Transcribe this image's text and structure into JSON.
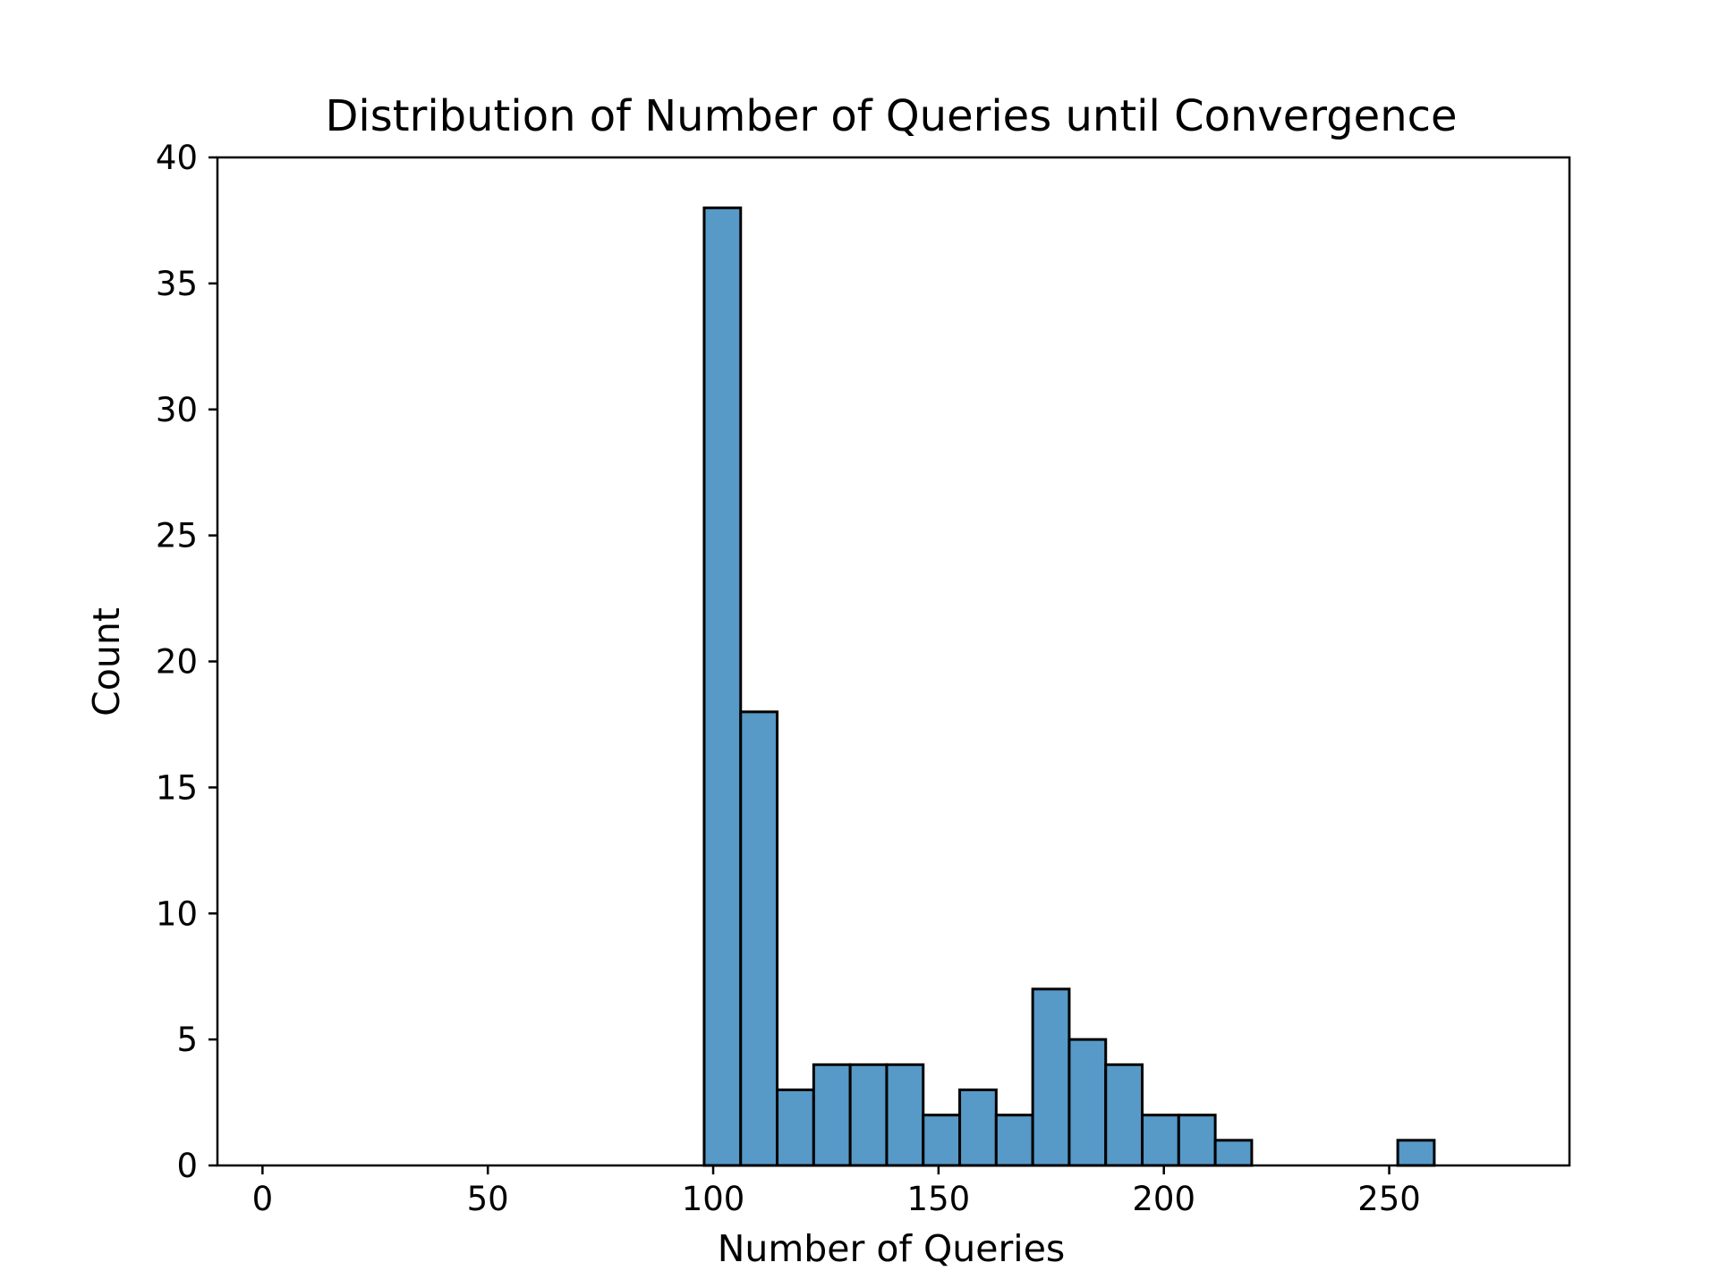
{
  "chart_data": {
    "type": "bar",
    "subtype": "histogram",
    "title": "Distribution of Number of Queries until Convergence",
    "xlabel": "Number of Queries",
    "ylabel": "Count",
    "xlim": [
      -10,
      290
    ],
    "ylim": [
      0,
      40
    ],
    "xticks": [
      0,
      50,
      100,
      150,
      200,
      250
    ],
    "yticks": [
      0,
      5,
      10,
      15,
      20,
      25,
      30,
      35,
      40
    ],
    "grid": false,
    "legend": "none",
    "bar_color": "#5799c7",
    "edge_color": "#000000",
    "bins": [
      {
        "x0": 98.0,
        "x1": 106.1,
        "count": 38
      },
      {
        "x0": 106.1,
        "x1": 114.2,
        "count": 18
      },
      {
        "x0": 114.2,
        "x1": 122.3,
        "count": 3
      },
      {
        "x0": 122.3,
        "x1": 130.4,
        "count": 4
      },
      {
        "x0": 130.4,
        "x1": 138.5,
        "count": 4
      },
      {
        "x0": 138.5,
        "x1": 146.6,
        "count": 4
      },
      {
        "x0": 146.6,
        "x1": 154.7,
        "count": 2
      },
      {
        "x0": 154.7,
        "x1": 162.8,
        "count": 3
      },
      {
        "x0": 162.8,
        "x1": 170.9,
        "count": 2
      },
      {
        "x0": 170.9,
        "x1": 179.0,
        "count": 7
      },
      {
        "x0": 179.0,
        "x1": 187.1,
        "count": 5
      },
      {
        "x0": 187.1,
        "x1": 195.2,
        "count": 4
      },
      {
        "x0": 195.2,
        "x1": 203.3,
        "count": 2
      },
      {
        "x0": 203.3,
        "x1": 211.4,
        "count": 2
      },
      {
        "x0": 211.4,
        "x1": 219.5,
        "count": 1
      },
      {
        "x0": 219.5,
        "x1": 227.6,
        "count": 0
      },
      {
        "x0": 227.6,
        "x1": 235.7,
        "count": 0
      },
      {
        "x0": 235.7,
        "x1": 243.8,
        "count": 0
      },
      {
        "x0": 243.8,
        "x1": 251.9,
        "count": 0
      },
      {
        "x0": 251.9,
        "x1": 260.0,
        "count": 1
      }
    ]
  }
}
